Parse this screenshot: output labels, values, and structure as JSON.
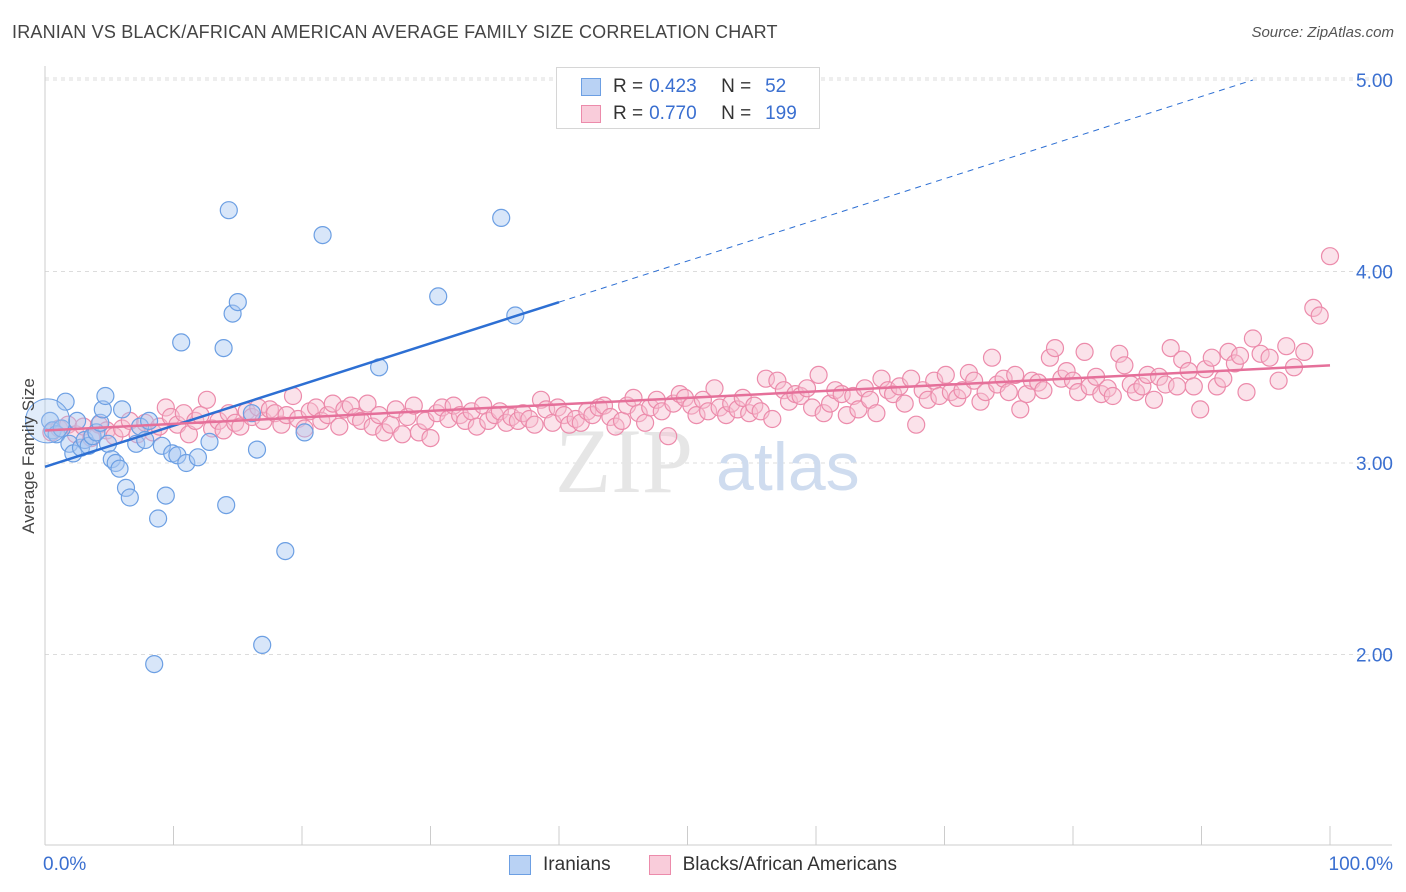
{
  "header": {
    "title": "IRANIAN VS BLACK/AFRICAN AMERICAN AVERAGE FAMILY SIZE CORRELATION CHART",
    "source": "Source: ZipAtlas.com"
  },
  "watermark": {
    "zip": "ZIP",
    "atlas": "atlas"
  },
  "colors": {
    "blue": "#6c9fe3",
    "blue_fill": "#a9c8f2",
    "blue_line": "#2d6fd3",
    "pink": "#ec8bab",
    "pink_fill": "#f6bfd0",
    "pink_line": "#e5709a",
    "tick_text": "#3a6fd0",
    "grid": "#dcdcdc"
  },
  "legend": {
    "rows": [
      {
        "r_label": "R =",
        "r_value": "0.423",
        "n_label": "N =",
        "n_value": "52",
        "series": "Iranians"
      },
      {
        "r_label": "R =",
        "r_value": "0.770",
        "n_label": "N =",
        "n_value": "199",
        "series": "Blacks/African Americans"
      }
    ]
  },
  "chart_data": {
    "type": "scatter",
    "title": "IRANIAN VS BLACK/AFRICAN AMERICAN AVERAGE FAMILY SIZE CORRELATION CHART",
    "xlabel": "",
    "ylabel": "Average Family Size",
    "xlim": [
      0,
      100
    ],
    "ylim": [
      1.0,
      5.1
    ],
    "x_ticks_labeled": [
      {
        "value": 0,
        "label": "0.0%"
      },
      {
        "value": 100,
        "label": "100.0%"
      }
    ],
    "y_ticks": [
      {
        "value": 2.0,
        "label": "2.00"
      },
      {
        "value": 3.0,
        "label": "3.00"
      },
      {
        "value": 4.0,
        "label": "4.00"
      },
      {
        "value": 5.0,
        "label": "5.00"
      }
    ],
    "grid": "horizontal dashed",
    "legend_position": "bottom",
    "series": [
      {
        "name": "Iranians",
        "r": 0.423,
        "n": 52,
        "trend": {
          "x0": 0,
          "y0": 2.98,
          "x1": 40,
          "y1": 3.84,
          "dashed_to_x": 94,
          "dashed_to_y": 5.0
        },
        "points": [
          [
            0.4,
            3.22
          ],
          [
            0.6,
            3.17
          ],
          [
            0.9,
            3.15
          ],
          [
            1.3,
            3.18
          ],
          [
            1.6,
            3.32
          ],
          [
            1.9,
            3.1
          ],
          [
            2.2,
            3.05
          ],
          [
            2.5,
            3.22
          ],
          [
            2.8,
            3.08
          ],
          [
            3.1,
            3.12
          ],
          [
            3.4,
            3.09
          ],
          [
            3.7,
            3.14
          ],
          [
            4.0,
            3.16
          ],
          [
            4.3,
            3.21
          ],
          [
            4.5,
            3.28
          ],
          [
            4.7,
            3.35
          ],
          [
            4.9,
            3.1
          ],
          [
            5.2,
            3.02
          ],
          [
            5.5,
            3.0
          ],
          [
            5.8,
            2.97
          ],
          [
            6.0,
            3.28
          ],
          [
            6.3,
            2.87
          ],
          [
            6.6,
            2.82
          ],
          [
            7.1,
            3.1
          ],
          [
            7.4,
            3.19
          ],
          [
            7.8,
            3.12
          ],
          [
            8.1,
            3.22
          ],
          [
            8.5,
            1.95
          ],
          [
            8.8,
            2.71
          ],
          [
            9.1,
            3.09
          ],
          [
            9.4,
            2.83
          ],
          [
            9.9,
            3.05
          ],
          [
            10.3,
            3.04
          ],
          [
            10.6,
            3.63
          ],
          [
            11.0,
            3.0
          ],
          [
            11.9,
            3.03
          ],
          [
            12.8,
            3.11
          ],
          [
            13.9,
            3.6
          ],
          [
            14.1,
            2.78
          ],
          [
            14.3,
            4.32
          ],
          [
            14.6,
            3.78
          ],
          [
            15.0,
            3.84
          ],
          [
            16.1,
            3.26
          ],
          [
            16.5,
            3.07
          ],
          [
            16.9,
            2.05
          ],
          [
            18.7,
            2.54
          ],
          [
            20.2,
            3.16
          ],
          [
            21.6,
            4.19
          ],
          [
            26.0,
            3.5
          ],
          [
            30.6,
            3.87
          ],
          [
            35.5,
            4.28
          ],
          [
            36.6,
            3.77
          ]
        ]
      },
      {
        "name": "Blacks/African Americans",
        "r": 0.77,
        "n": 199,
        "trend": {
          "x0": 0,
          "y0": 3.17,
          "x1": 100,
          "y1": 3.51
        },
        "points": [
          [
            0.5,
            3.16
          ],
          [
            1.1,
            3.18
          ],
          [
            1.8,
            3.2
          ],
          [
            2.4,
            3.15
          ],
          [
            3.0,
            3.19
          ],
          [
            3.6,
            3.13
          ],
          [
            4.2,
            3.2
          ],
          [
            4.8,
            3.17
          ],
          [
            5.4,
            3.14
          ],
          [
            6.0,
            3.18
          ],
          [
            6.6,
            3.22
          ],
          [
            7.2,
            3.15
          ],
          [
            7.8,
            3.21
          ],
          [
            8.4,
            3.16
          ],
          [
            8.9,
            3.19
          ],
          [
            9.4,
            3.29
          ],
          [
            9.8,
            3.24
          ],
          [
            10.3,
            3.2
          ],
          [
            10.8,
            3.26
          ],
          [
            11.2,
            3.15
          ],
          [
            11.7,
            3.22
          ],
          [
            12.1,
            3.25
          ],
          [
            12.6,
            3.33
          ],
          [
            13.0,
            3.18
          ],
          [
            13.5,
            3.22
          ],
          [
            13.9,
            3.17
          ],
          [
            14.3,
            3.26
          ],
          [
            14.8,
            3.21
          ],
          [
            15.2,
            3.19
          ],
          [
            15.7,
            3.27
          ],
          [
            16.1,
            3.24
          ],
          [
            16.6,
            3.29
          ],
          [
            17.0,
            3.22
          ],
          [
            17.5,
            3.28
          ],
          [
            17.9,
            3.26
          ],
          [
            18.4,
            3.2
          ],
          [
            18.8,
            3.25
          ],
          [
            19.3,
            3.35
          ],
          [
            19.7,
            3.23
          ],
          [
            20.2,
            3.18
          ],
          [
            20.6,
            3.27
          ],
          [
            21.1,
            3.29
          ],
          [
            21.5,
            3.22
          ],
          [
            22.0,
            3.25
          ],
          [
            22.4,
            3.31
          ],
          [
            22.9,
            3.19
          ],
          [
            23.3,
            3.28
          ],
          [
            23.8,
            3.3
          ],
          [
            24.2,
            3.24
          ],
          [
            24.6,
            3.22
          ],
          [
            25.1,
            3.31
          ],
          [
            25.5,
            3.19
          ],
          [
            26.0,
            3.25
          ],
          [
            26.4,
            3.16
          ],
          [
            26.9,
            3.2
          ],
          [
            27.3,
            3.28
          ],
          [
            27.8,
            3.15
          ],
          [
            28.2,
            3.24
          ],
          [
            28.7,
            3.3
          ],
          [
            29.1,
            3.16
          ],
          [
            29.6,
            3.22
          ],
          [
            30.0,
            3.13
          ],
          [
            30.5,
            3.26
          ],
          [
            30.9,
            3.29
          ],
          [
            31.4,
            3.23
          ],
          [
            31.8,
            3.3
          ],
          [
            32.3,
            3.25
          ],
          [
            32.7,
            3.22
          ],
          [
            33.2,
            3.27
          ],
          [
            33.6,
            3.19
          ],
          [
            34.1,
            3.3
          ],
          [
            34.5,
            3.22
          ],
          [
            35.0,
            3.25
          ],
          [
            35.4,
            3.27
          ],
          [
            35.9,
            3.21
          ],
          [
            36.3,
            3.24
          ],
          [
            36.8,
            3.22
          ],
          [
            37.2,
            3.26
          ],
          [
            37.7,
            3.23
          ],
          [
            38.1,
            3.2
          ],
          [
            38.6,
            3.33
          ],
          [
            39.0,
            3.28
          ],
          [
            39.5,
            3.21
          ],
          [
            39.9,
            3.29
          ],
          [
            40.4,
            3.25
          ],
          [
            40.8,
            3.2
          ],
          [
            41.3,
            3.23
          ],
          [
            41.7,
            3.21
          ],
          [
            42.2,
            3.27
          ],
          [
            42.6,
            3.25
          ],
          [
            43.1,
            3.29
          ],
          [
            43.5,
            3.3
          ],
          [
            44.0,
            3.24
          ],
          [
            44.4,
            3.19
          ],
          [
            44.9,
            3.22
          ],
          [
            45.3,
            3.3
          ],
          [
            45.8,
            3.34
          ],
          [
            46.2,
            3.26
          ],
          [
            46.7,
            3.21
          ],
          [
            47.1,
            3.29
          ],
          [
            47.6,
            3.33
          ],
          [
            48.0,
            3.27
          ],
          [
            48.5,
            3.14
          ],
          [
            48.9,
            3.31
          ],
          [
            49.4,
            3.36
          ],
          [
            49.8,
            3.34
          ],
          [
            50.3,
            3.3
          ],
          [
            50.7,
            3.25
          ],
          [
            51.2,
            3.33
          ],
          [
            51.6,
            3.27
          ],
          [
            52.1,
            3.39
          ],
          [
            52.5,
            3.29
          ],
          [
            53.0,
            3.25
          ],
          [
            53.4,
            3.31
          ],
          [
            53.9,
            3.28
          ],
          [
            54.3,
            3.34
          ],
          [
            54.8,
            3.26
          ],
          [
            55.2,
            3.3
          ],
          [
            55.7,
            3.27
          ],
          [
            56.1,
            3.44
          ],
          [
            56.6,
            3.23
          ],
          [
            57.0,
            3.43
          ],
          [
            57.5,
            3.38
          ],
          [
            57.9,
            3.32
          ],
          [
            58.4,
            3.36
          ],
          [
            58.8,
            3.35
          ],
          [
            59.3,
            3.39
          ],
          [
            59.7,
            3.29
          ],
          [
            60.2,
            3.46
          ],
          [
            60.6,
            3.26
          ],
          [
            61.1,
            3.31
          ],
          [
            61.5,
            3.38
          ],
          [
            62.0,
            3.36
          ],
          [
            62.4,
            3.25
          ],
          [
            62.9,
            3.35
          ],
          [
            63.3,
            3.28
          ],
          [
            63.8,
            3.39
          ],
          [
            64.2,
            3.33
          ],
          [
            64.7,
            3.26
          ],
          [
            65.1,
            3.44
          ],
          [
            65.6,
            3.38
          ],
          [
            66.0,
            3.36
          ],
          [
            66.5,
            3.4
          ],
          [
            66.9,
            3.31
          ],
          [
            67.4,
            3.44
          ],
          [
            67.8,
            3.2
          ],
          [
            68.3,
            3.38
          ],
          [
            68.7,
            3.33
          ],
          [
            69.2,
            3.43
          ],
          [
            69.6,
            3.35
          ],
          [
            70.1,
            3.46
          ],
          [
            70.5,
            3.37
          ],
          [
            71.0,
            3.34
          ],
          [
            71.4,
            3.38
          ],
          [
            71.9,
            3.47
          ],
          [
            72.3,
            3.43
          ],
          [
            72.8,
            3.32
          ],
          [
            73.2,
            3.37
          ],
          [
            73.7,
            3.55
          ],
          [
            74.1,
            3.41
          ],
          [
            74.6,
            3.44
          ],
          [
            75.0,
            3.37
          ],
          [
            75.5,
            3.46
          ],
          [
            75.9,
            3.28
          ],
          [
            76.4,
            3.36
          ],
          [
            76.8,
            3.43
          ],
          [
            77.3,
            3.42
          ],
          [
            77.7,
            3.38
          ],
          [
            78.2,
            3.55
          ],
          [
            78.6,
            3.6
          ],
          [
            79.1,
            3.44
          ],
          [
            79.5,
            3.48
          ],
          [
            80.0,
            3.43
          ],
          [
            80.4,
            3.37
          ],
          [
            80.9,
            3.58
          ],
          [
            81.3,
            3.4
          ],
          [
            81.8,
            3.45
          ],
          [
            82.2,
            3.36
          ],
          [
            82.7,
            3.39
          ],
          [
            83.1,
            3.35
          ],
          [
            83.6,
            3.57
          ],
          [
            84.0,
            3.51
          ],
          [
            84.5,
            3.41
          ],
          [
            84.9,
            3.37
          ],
          [
            85.4,
            3.4
          ],
          [
            85.8,
            3.46
          ],
          [
            86.3,
            3.33
          ],
          [
            86.7,
            3.45
          ],
          [
            87.2,
            3.41
          ],
          [
            87.6,
            3.6
          ],
          [
            88.1,
            3.4
          ],
          [
            88.5,
            3.54
          ],
          [
            89.0,
            3.48
          ],
          [
            89.4,
            3.4
          ],
          [
            89.9,
            3.28
          ],
          [
            90.3,
            3.49
          ],
          [
            90.8,
            3.55
          ],
          [
            91.2,
            3.4
          ],
          [
            91.7,
            3.44
          ],
          [
            92.1,
            3.58
          ],
          [
            92.6,
            3.52
          ],
          [
            93.0,
            3.56
          ],
          [
            93.5,
            3.37
          ],
          [
            94.0,
            3.65
          ],
          [
            94.6,
            3.57
          ],
          [
            95.3,
            3.55
          ],
          [
            96.0,
            3.43
          ],
          [
            96.6,
            3.61
          ],
          [
            97.2,
            3.5
          ],
          [
            98.0,
            3.58
          ],
          [
            98.7,
            3.81
          ],
          [
            99.2,
            3.77
          ],
          [
            100.0,
            4.08
          ]
        ]
      }
    ]
  }
}
